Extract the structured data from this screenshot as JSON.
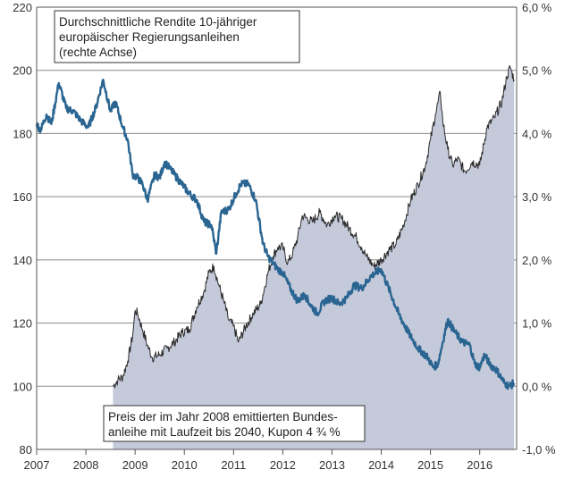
{
  "chart_data": {
    "type": "area",
    "title": "",
    "x_ticks": [
      "2007",
      "2008",
      "2009",
      "2010",
      "2011",
      "2012",
      "2013",
      "2014",
      "2015",
      "2016"
    ],
    "x_range": [
      2007.0,
      2016.75
    ],
    "left_axis": {
      "ticks": [
        "80",
        "100",
        "120",
        "140",
        "160",
        "180",
        "200",
        "220"
      ],
      "range": [
        80,
        220
      ]
    },
    "right_axis": {
      "ticks": [
        "-1,0 %",
        "0,0 %",
        "1,0 %",
        "2,0 %",
        "3,0 %",
        "4,0 %",
        "5,0 %",
        "6,0 %"
      ],
      "range": [
        -1.0,
        6.0
      ]
    },
    "grid": "horizontal",
    "annotations": {
      "yield_label": [
        "Durchschnittliche Rendite 10-jähriger",
        "europäischer Regierungsanleihen",
        "(rechte Achse)"
      ],
      "bond_label": [
        "Preis der im Jahr 2008 emittierten Bundes-",
        "anleihe mit Laufzeit bis 2040, Kupon 4 ¾ %"
      ]
    },
    "series": [
      {
        "name": "Durchschnittliche Rendite 10-jähriger europäischer Regierungsanleihen",
        "axis": "right",
        "style": "line",
        "color": "#2a6592",
        "x": [
          2007.0,
          2007.08,
          2007.2,
          2007.3,
          2007.45,
          2007.6,
          2007.75,
          2007.9,
          2008.05,
          2008.2,
          2008.35,
          2008.5,
          2008.6,
          2008.75,
          2008.85,
          2008.95,
          2009.05,
          2009.15,
          2009.25,
          2009.4,
          2009.5,
          2009.6,
          2009.7,
          2009.8,
          2009.95,
          2010.1,
          2010.25,
          2010.4,
          2010.55,
          2010.65,
          2010.75,
          2010.9,
          2011.05,
          2011.15,
          2011.3,
          2011.45,
          2011.6,
          2011.7,
          2011.8,
          2011.9,
          2012.0,
          2012.15,
          2012.3,
          2012.45,
          2012.55,
          2012.7,
          2012.85,
          2013.0,
          2013.15,
          2013.3,
          2013.45,
          2013.6,
          2013.8,
          2014.0,
          2014.15,
          2014.35,
          2014.55,
          2014.75,
          2014.95,
          2015.05,
          2015.15,
          2015.25,
          2015.35,
          2015.5,
          2015.65,
          2015.8,
          2015.9,
          2016.0,
          2016.1,
          2016.2,
          2016.35,
          2016.5,
          2016.6,
          2016.7
        ],
        "y": [
          4.15,
          4.05,
          4.3,
          4.15,
          4.8,
          4.4,
          4.35,
          4.2,
          4.1,
          4.4,
          4.85,
          4.35,
          4.5,
          4.1,
          3.9,
          3.35,
          3.3,
          3.2,
          2.95,
          3.35,
          3.3,
          3.55,
          3.45,
          3.35,
          3.2,
          3.05,
          2.95,
          2.6,
          2.55,
          2.1,
          2.75,
          2.8,
          3.05,
          3.2,
          3.2,
          2.95,
          2.25,
          2.05,
          1.95,
          1.85,
          1.8,
          1.55,
          1.35,
          1.45,
          1.3,
          1.15,
          1.35,
          1.4,
          1.3,
          1.4,
          1.6,
          1.55,
          1.75,
          1.85,
          1.55,
          1.15,
          0.85,
          0.6,
          0.45,
          0.3,
          0.35,
          0.7,
          1.05,
          0.85,
          0.7,
          0.65,
          0.35,
          0.3,
          0.5,
          0.35,
          0.25,
          0.05,
          0.0,
          0.05
        ]
      },
      {
        "name": "Preis der im Jahr 2008 emittierten Bundesanleihe mit Laufzeit bis 2040, Kupon 4 ¾ %",
        "axis": "left",
        "style": "area",
        "color": "#c5cadb",
        "line_color": "#2b2b2b",
        "x": [
          2008.55,
          2008.65,
          2008.75,
          2008.85,
          2008.95,
          2009.0,
          2009.05,
          2009.15,
          2009.25,
          2009.35,
          2009.5,
          2009.65,
          2009.8,
          2009.95,
          2010.1,
          2010.25,
          2010.4,
          2010.5,
          2010.6,
          2010.7,
          2010.8,
          2010.9,
          2011.0,
          2011.1,
          2011.25,
          2011.4,
          2011.55,
          2011.7,
          2011.8,
          2011.9,
          2012.0,
          2012.1,
          2012.2,
          2012.3,
          2012.4,
          2012.5,
          2012.6,
          2012.75,
          2012.9,
          2013.05,
          2013.2,
          2013.35,
          2013.5,
          2013.6,
          2013.7,
          2013.85,
          2014.0,
          2014.15,
          2014.3,
          2014.45,
          2014.6,
          2014.75,
          2014.9,
          2015.0,
          2015.1,
          2015.2,
          2015.25,
          2015.35,
          2015.45,
          2015.55,
          2015.7,
          2015.85,
          2016.0,
          2016.15,
          2016.3,
          2016.45,
          2016.55,
          2016.62,
          2016.7
        ],
        "y": [
          100,
          102,
          103,
          108,
          116,
          124,
          123,
          118,
          113,
          109,
          110,
          112,
          114,
          117,
          118,
          125,
          130,
          136,
          138,
          132,
          127,
          121,
          119,
          114,
          119,
          123,
          126,
          136,
          141,
          144,
          144,
          139,
          142,
          147,
          154,
          153,
          152,
          155,
          151,
          154,
          153,
          150,
          147,
          144,
          141,
          138,
          140,
          143,
          145,
          151,
          159,
          164,
          170,
          178,
          186,
          193,
          184,
          175,
          170,
          172,
          168,
          171,
          170,
          182,
          185,
          190,
          198,
          201,
          197
        ]
      }
    ]
  }
}
